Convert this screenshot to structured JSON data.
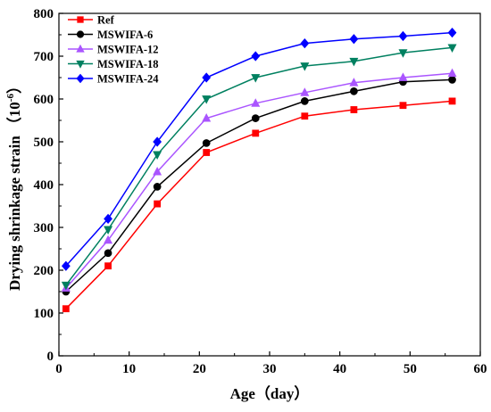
{
  "chart_data": {
    "type": "line",
    "title": "",
    "xlabel": "Age（day）",
    "ylabel": "Drying shrinkage strain",
    "ylabel_unit_base": "（10",
    "ylabel_unit_exp": "-6",
    "ylabel_unit_close": "）",
    "xlim": [
      0,
      60
    ],
    "ylim": [
      0,
      800
    ],
    "xticks": [
      "0",
      "10",
      "20",
      "30",
      "40",
      "50",
      "60"
    ],
    "yticks": [
      "0",
      "100",
      "200",
      "300",
      "400",
      "500",
      "600",
      "700",
      "800"
    ],
    "grid": false,
    "legend_position": "top-left",
    "x": [
      1,
      7,
      14,
      21,
      28,
      35,
      42,
      49,
      56
    ],
    "series": [
      {
        "name": "Ref",
        "color": "#ff0000",
        "marker": "square",
        "values": [
          110,
          210,
          355,
          475,
          520,
          560,
          575,
          585,
          595
        ]
      },
      {
        "name": "MSWIFA-6",
        "color": "#000000",
        "marker": "circle",
        "values": [
          150,
          240,
          395,
          497,
          555,
          595,
          618,
          640,
          645
        ]
      },
      {
        "name": "MSWIFA-12",
        "color": "#aa55ff",
        "marker": "triangle-up",
        "values": [
          158,
          270,
          430,
          555,
          590,
          615,
          638,
          650,
          660
        ]
      },
      {
        "name": "MSWIFA-18",
        "color": "#008060",
        "marker": "triangle-down",
        "values": [
          165,
          295,
          470,
          600,
          650,
          677,
          688,
          708,
          720
        ]
      },
      {
        "name": "MSWIFA-24",
        "color": "#0000ff",
        "marker": "diamond",
        "values": [
          210,
          320,
          500,
          650,
          700,
          730,
          740,
          747,
          755
        ]
      }
    ]
  }
}
